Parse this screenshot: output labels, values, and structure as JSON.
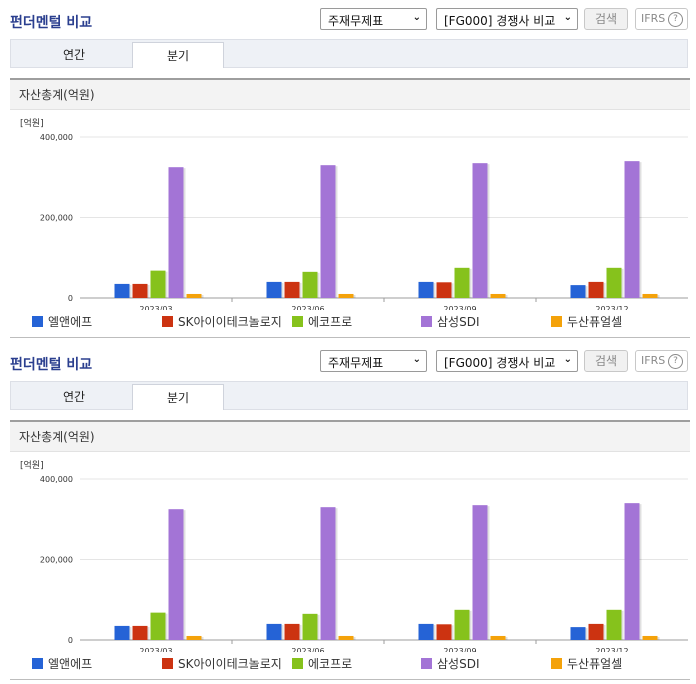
{
  "sections": [
    {
      "title": "펀더멘털 비교",
      "statement_select": "주재무제표",
      "peer_select": "[FG000] 경쟁사 비교",
      "search_label": "검색",
      "ifrs_label": "IFRS",
      "help_label": "?",
      "tabs": [
        {
          "label": "연간",
          "active": false
        },
        {
          "label": "분기",
          "active": true
        }
      ],
      "panel_title": "자산총계(억원)",
      "chart_data": {
        "type": "bar",
        "unit_label": "[억원]",
        "categories": [
          "2023/03",
          "2023/06",
          "2023/09",
          "2023/12"
        ],
        "ylim": [
          0,
          400000
        ],
        "yticks": [
          0,
          200000,
          400000
        ],
        "ytick_labels": [
          "0",
          "200,000",
          "400,000"
        ],
        "grid": true,
        "legend_position": "bottom",
        "series": [
          {
            "name": "엘앤에프",
            "color": "#2563d6",
            "values": [
              35000,
              40000,
              40000,
              32000
            ]
          },
          {
            "name": "SK아이이테크놀로지",
            "color": "#cc3311",
            "values": [
              35000,
              40000,
              39000,
              40000
            ]
          },
          {
            "name": "에코프로",
            "color": "#86c21c",
            "values": [
              68000,
              65000,
              75000,
              75000
            ]
          },
          {
            "name": "삼성SDI",
            "color": "#a374d6",
            "values": [
              325000,
              330000,
              335000,
              340000
            ]
          },
          {
            "name": "두산퓨얼셀",
            "color": "#f4a20a",
            "values": [
              10000,
              10000,
              10000,
              10000
            ]
          }
        ]
      }
    },
    {
      "title": "펀더멘털 비교",
      "statement_select": "주재무제표",
      "peer_select": "[FG000] 경쟁사 비교",
      "search_label": "검색",
      "ifrs_label": "IFRS",
      "help_label": "?",
      "tabs": [
        {
          "label": "연간",
          "active": false
        },
        {
          "label": "분기",
          "active": true
        }
      ],
      "panel_title": "자산총계(억원)",
      "chart_data": {
        "type": "bar",
        "unit_label": "[억원]",
        "categories": [
          "2023/03",
          "2023/06",
          "2023/09",
          "2023/12"
        ],
        "ylim": [
          0,
          400000
        ],
        "yticks": [
          0,
          200000,
          400000
        ],
        "ytick_labels": [
          "0",
          "200,000",
          "400,000"
        ],
        "grid": true,
        "legend_position": "bottom",
        "series": [
          {
            "name": "엘앤에프",
            "color": "#2563d6",
            "values": [
              35000,
              40000,
              40000,
              32000
            ]
          },
          {
            "name": "SK아이이테크놀로지",
            "color": "#cc3311",
            "values": [
              35000,
              40000,
              39000,
              40000
            ]
          },
          {
            "name": "에코프로",
            "color": "#86c21c",
            "values": [
              68000,
              65000,
              75000,
              75000
            ]
          },
          {
            "name": "삼성SDI",
            "color": "#a374d6",
            "values": [
              325000,
              330000,
              335000,
              340000
            ]
          },
          {
            "name": "두산퓨얼셀",
            "color": "#f4a20a",
            "values": [
              10000,
              10000,
              10000,
              10000
            ]
          }
        ]
      }
    }
  ]
}
